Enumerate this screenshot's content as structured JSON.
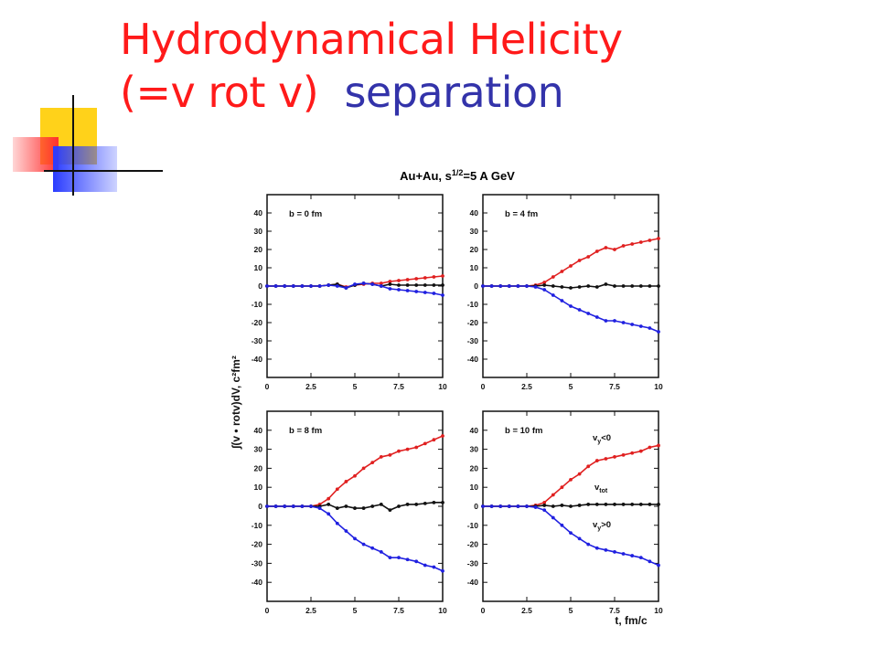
{
  "slide": {
    "title_line1": "Hydrodynamical Helicity",
    "title_line2_red": "(=v rot v)",
    "title_line2_blue": "separation"
  },
  "colors": {
    "red": "#ff1a1a",
    "blue": "#3333aa",
    "series_red": "#e02020",
    "series_blue": "#2020e0",
    "series_black": "#111111"
  },
  "chart_data": {
    "type": "line",
    "title": "Au+Au, s^1/2=5 A GeV",
    "xlabel": "t, fm/c",
    "ylabel": "∫(v • rotv)dV, c²fm²",
    "xlim": [
      0,
      10
    ],
    "ylim": [
      -50,
      50
    ],
    "xticks": [
      "0",
      "2.5",
      "5",
      "7.5",
      "10"
    ],
    "yticks": [
      "40",
      "30",
      "20",
      "10",
      "0",
      "-10",
      "-20",
      "-30",
      "-40"
    ],
    "annotations": {
      "red": "v_y<0",
      "black": "v_tot",
      "blue": "v_y>0"
    },
    "panels": [
      {
        "label": "b = 0 fm",
        "x": [
          0,
          0.5,
          1,
          1.5,
          2,
          2.5,
          3,
          3.5,
          4,
          4.5,
          5,
          5.5,
          6,
          6.5,
          7,
          7.5,
          8,
          8.5,
          9,
          9.5,
          10
        ],
        "series": [
          {
            "color": "red",
            "values": [
              0,
              0,
              0,
              0,
              0,
              0,
              0,
              0.5,
              1,
              -0.5,
              0.5,
              1,
              1.5,
              1.5,
              2.5,
              3,
              3.5,
              4,
              4.5,
              5,
              5.5
            ]
          },
          {
            "color": "black",
            "values": [
              0,
              0,
              0,
              0,
              0,
              0,
              0,
              0.5,
              1,
              -1,
              0.5,
              1.5,
              1,
              0,
              1,
              0.5,
              0.5,
              0.5,
              0.5,
              0.5,
              0.5
            ]
          },
          {
            "color": "blue",
            "values": [
              0,
              0,
              0,
              0,
              0,
              0,
              0,
              0.5,
              0,
              -1,
              1,
              1.5,
              1,
              0,
              -1.5,
              -2,
              -2.5,
              -3,
              -3.5,
              -4,
              -5
            ]
          }
        ]
      },
      {
        "label": "b = 4 fm",
        "x": [
          0,
          0.5,
          1,
          1.5,
          2,
          2.5,
          3,
          3.5,
          4,
          4.5,
          5,
          5.5,
          6,
          6.5,
          7,
          7.5,
          8,
          8.5,
          9,
          9.5,
          10
        ],
        "series": [
          {
            "color": "red",
            "values": [
              0,
              0,
              0,
              0,
              0,
              0,
              0.5,
              2,
              5,
              8,
              11,
              14,
              16,
              19,
              21,
              20,
              22,
              23,
              24,
              25,
              26
            ]
          },
          {
            "color": "black",
            "values": [
              0,
              0,
              0,
              0,
              0,
              0,
              0,
              0.5,
              0,
              -0.5,
              -1,
              -0.5,
              0,
              -0.5,
              1,
              0,
              0,
              0,
              0,
              0,
              0
            ]
          },
          {
            "color": "blue",
            "values": [
              0,
              0,
              0,
              0,
              0,
              0,
              -0.5,
              -2,
              -5,
              -8,
              -11,
              -13,
              -15,
              -17,
              -19,
              -19,
              -20,
              -21,
              -22,
              -23,
              -25
            ]
          }
        ]
      },
      {
        "label": "b = 8 fm",
        "x": [
          0,
          0.5,
          1,
          1.5,
          2,
          2.5,
          3,
          3.5,
          4,
          4.5,
          5,
          5.5,
          6,
          6.5,
          7,
          7.5,
          8,
          8.5,
          9,
          9.5,
          10
        ],
        "series": [
          {
            "color": "red",
            "values": [
              0,
              0,
              0,
              0,
              0,
              0,
              1,
              4,
              9,
              13,
              16,
              20,
              23,
              26,
              27,
              29,
              30,
              31,
              33,
              35,
              37
            ]
          },
          {
            "color": "black",
            "values": [
              0,
              0,
              0,
              0,
              0,
              0,
              0,
              1,
              -1,
              0,
              -1,
              -1,
              0,
              1,
              -2,
              0,
              1,
              1,
              1.5,
              2,
              2
            ]
          },
          {
            "color": "blue",
            "values": [
              0,
              0,
              0,
              0,
              0,
              0,
              -1,
              -4,
              -9,
              -13,
              -17,
              -20,
              -22,
              -24,
              -27,
              -27,
              -28,
              -29,
              -31,
              -32,
              -34
            ]
          }
        ]
      },
      {
        "label": "b = 10 fm",
        "x": [
          0,
          0.5,
          1,
          1.5,
          2,
          2.5,
          3,
          3.5,
          4,
          4.5,
          5,
          5.5,
          6,
          6.5,
          7,
          7.5,
          8,
          8.5,
          9,
          9.5,
          10
        ],
        "series": [
          {
            "color": "red",
            "values": [
              0,
              0,
              0,
              0,
              0,
              0,
              0.5,
              2,
              6,
              10,
              14,
              17,
              21,
              24,
              25,
              26,
              27,
              28,
              29,
              31,
              32
            ]
          },
          {
            "color": "black",
            "values": [
              0,
              0,
              0,
              0,
              0,
              0,
              0,
              0.5,
              0,
              0.5,
              0,
              0.5,
              1,
              1,
              1,
              1,
              1,
              1,
              1,
              1,
              1
            ]
          },
          {
            "color": "blue",
            "values": [
              0,
              0,
              0,
              0,
              0,
              0,
              -0.5,
              -2,
              -6,
              -10,
              -14,
              -17,
              -20,
              -22,
              -23,
              -24,
              -25,
              -26,
              -27,
              -29,
              -31
            ]
          }
        ]
      }
    ]
  }
}
